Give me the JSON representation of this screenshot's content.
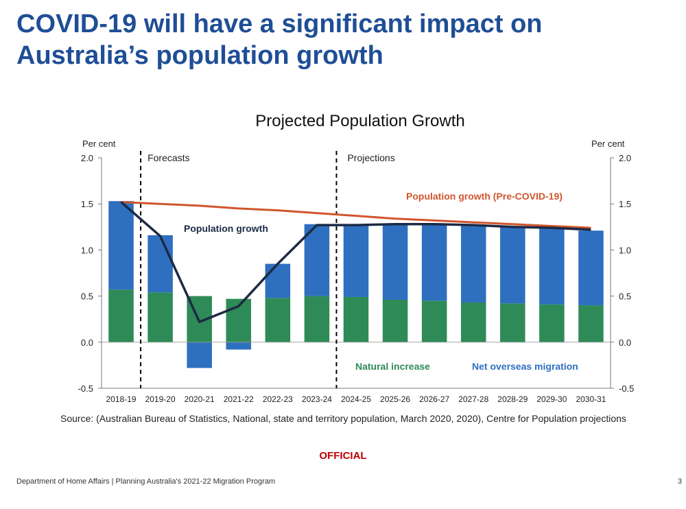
{
  "slide": {
    "title_line1": "COVID-19 will have a significant impact on",
    "title_line2": "Australia’s population growth",
    "source": "Source: (Australian Bureau of Statistics, National, state and territory population, March 2020, 2020), Centre for Population projections",
    "official": "OFFICIAL",
    "footer": "Department of Home Affairs | Planning Australia's 2021-22 Migration Program",
    "page_number": "3"
  },
  "colors": {
    "natural_increase": "#2e8b57",
    "net_overseas_migration": "#2f6fc0",
    "population_growth": "#1c2a44",
    "pre_covid": "#d0552d",
    "title": "#1f4e96"
  },
  "chart_data": {
    "type": "bar",
    "title": "Projected Population Growth",
    "ylabel_left": "Per cent",
    "ylabel_right": "Per cent",
    "ylim": [
      -0.5,
      2.0
    ],
    "yticks": [
      "2.0",
      "1.5",
      "1.0",
      "0.5",
      "0.0",
      "-0.5"
    ],
    "categories": [
      "2018-19",
      "2019-20",
      "2020-21",
      "2021-22",
      "2022-23",
      "2023-24",
      "2024-25",
      "2025-26",
      "2026-27",
      "2027-28",
      "2028-29",
      "2029-30",
      "2030-31"
    ],
    "stacked_series": [
      {
        "name": "Natural increase",
        "values": [
          0.57,
          0.54,
          0.5,
          0.47,
          0.48,
          0.5,
          0.49,
          0.46,
          0.45,
          0.43,
          0.42,
          0.41,
          0.4
        ]
      },
      {
        "name": "Net overseas migration",
        "values": [
          0.96,
          0.62,
          -0.28,
          -0.08,
          0.37,
          0.78,
          0.77,
          0.82,
          0.83,
          0.84,
          0.83,
          0.83,
          0.81
        ]
      }
    ],
    "line_series": [
      {
        "name": "Population growth",
        "values": [
          1.52,
          1.15,
          0.22,
          0.39,
          0.85,
          1.27,
          1.27,
          1.28,
          1.28,
          1.27,
          1.25,
          1.24,
          1.22
        ]
      },
      {
        "name": "Population growth (Pre-COVID-19)",
        "values": [
          1.52,
          1.5,
          1.48,
          1.45,
          1.43,
          1.4,
          1.37,
          1.34,
          1.32,
          1.3,
          1.28,
          1.26,
          1.24
        ]
      }
    ],
    "annotations": {
      "forecasts": "Forecasts",
      "projections": "Projections",
      "population_growth_label": "Population growth",
      "pre_covid_label": "Population growth (Pre-COVID-19)",
      "natural_increase_label": "Natural increase",
      "nom_label": "Net overseas migration"
    },
    "grid": false,
    "legend": "in-plot labels"
  }
}
